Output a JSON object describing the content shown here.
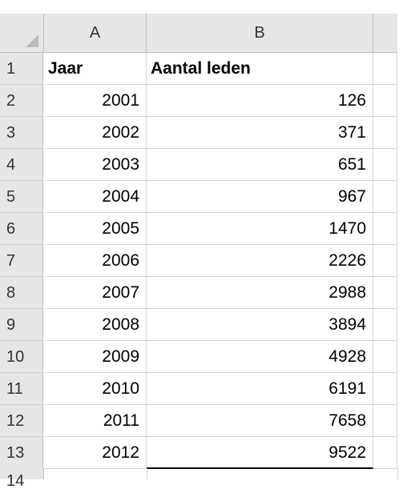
{
  "columns": [
    "A",
    "B"
  ],
  "rows": [
    {
      "num": "1",
      "a": "Jaar",
      "b": "Aantal leden",
      "header": true
    },
    {
      "num": "2",
      "a": "2001",
      "b": "126"
    },
    {
      "num": "3",
      "a": "2002",
      "b": "371"
    },
    {
      "num": "4",
      "a": "2003",
      "b": "651"
    },
    {
      "num": "5",
      "a": "2004",
      "b": "967"
    },
    {
      "num": "6",
      "a": "2005",
      "b": "1470"
    },
    {
      "num": "7",
      "a": "2006",
      "b": "2226"
    },
    {
      "num": "8",
      "a": "2007",
      "b": "2988"
    },
    {
      "num": "9",
      "a": "2008",
      "b": "3894"
    },
    {
      "num": "10",
      "a": "2009",
      "b": "4928"
    },
    {
      "num": "11",
      "a": "2010",
      "b": "6191"
    },
    {
      "num": "12",
      "a": "2011",
      "b": "7658"
    },
    {
      "num": "13",
      "a": "2012",
      "b": "9522"
    }
  ],
  "partial_row": {
    "num": "14"
  }
}
